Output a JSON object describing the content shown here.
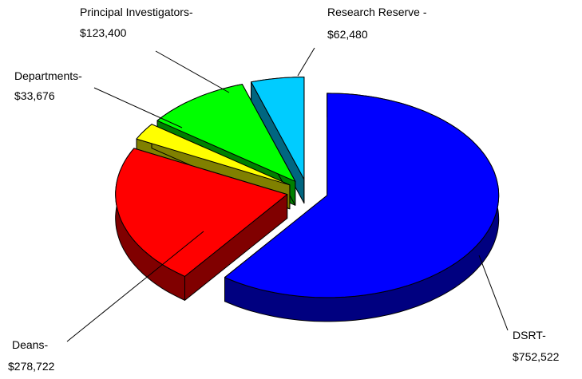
{
  "chart_data": {
    "type": "pie",
    "categories": [
      "DSRT-",
      "Deans-",
      "Departments-",
      "Principal Investigators-",
      "Research Reserve -"
    ],
    "values": [
      752522,
      278722,
      33676,
      123400,
      62480
    ],
    "value_labels": [
      "$752,522",
      "$278,722",
      "$33,676",
      "$123,400",
      "$62,480"
    ],
    "colors": [
      "#0000ff",
      "#ff0000",
      "#ffff00",
      "#00ff00",
      "#00ccff"
    ]
  }
}
